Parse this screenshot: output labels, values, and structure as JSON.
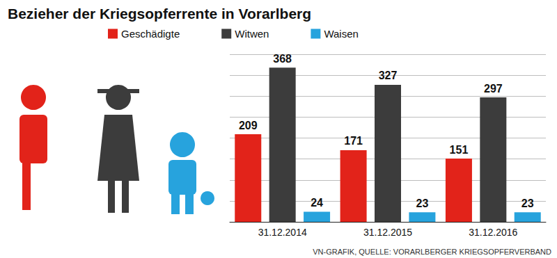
{
  "chart_data": {
    "type": "bar",
    "title": "Bezieher der Kriegsopferrente in Vorarlberg",
    "source": "VN-GRAFIK, QUELLE: VORARLBERGER KRIEGSOPFERVERBAND",
    "categories": [
      "31.12.2014",
      "31.12.2015",
      "31.12.2016"
    ],
    "series": [
      {
        "name": "Geschädigte",
        "color": "#e2231a",
        "values": [
          209,
          171,
          151
        ]
      },
      {
        "name": "Witwen",
        "color": "#3c3c3c",
        "values": [
          368,
          327,
          297
        ]
      },
      {
        "name": "Waisen",
        "color": "#27a3dd",
        "values": [
          24,
          23,
          23
        ]
      }
    ],
    "ylim": [
      0,
      400
    ],
    "yticks": [
      0,
      50,
      100,
      150,
      200,
      250,
      300,
      350,
      400
    ],
    "grid": true,
    "legend": "top",
    "data_labels": true,
    "tick_labels": "x"
  }
}
